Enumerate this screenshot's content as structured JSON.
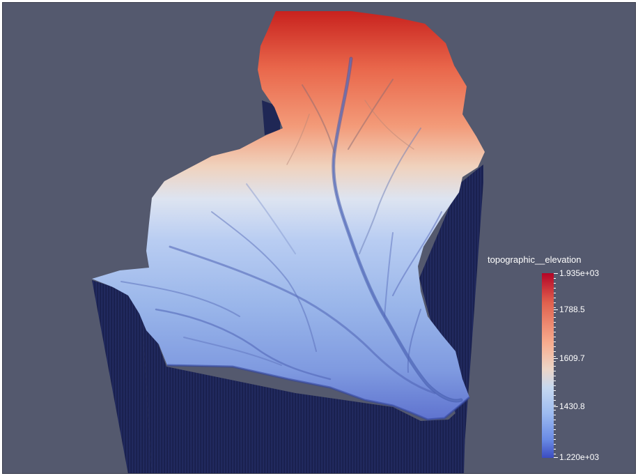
{
  "viewer": {
    "background": "#54596e",
    "scene": "terrain-elevation-3d"
  },
  "legend": {
    "title": "topographic__elevation",
    "max_label": "1.935e+03",
    "min_label": "1.220e+03",
    "tick_labels": [
      "1788.5",
      "1609.7",
      "1430.8"
    ],
    "range": [
      1220,
      1935
    ],
    "colormap": [
      "#3b4cc0",
      "#6a8be5",
      "#9dbbf0",
      "#c6d8f0",
      "#ecd6c8",
      "#f7ad8f",
      "#e0614e",
      "#b40426"
    ]
  },
  "colors": {
    "wall": "#1f2755",
    "wall_dark": "#141a3c"
  }
}
